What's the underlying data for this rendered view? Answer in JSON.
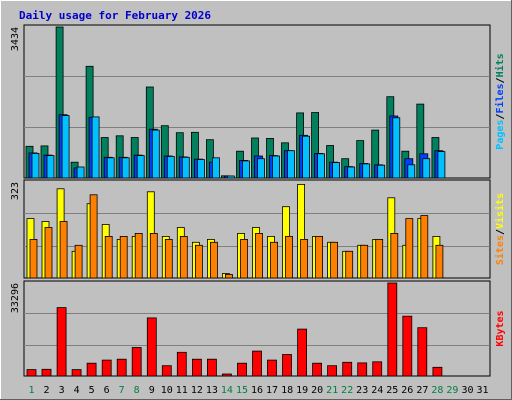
{
  "title": "Daily usage for February 2026",
  "colors": {
    "frame_bg": "#C0C0C0",
    "plot_bg": "#C0C0C0",
    "grid": "#808080",
    "title_text": "#0000CC",
    "hits": "#00805C",
    "files": "#0040FF",
    "pages": "#00C0FF",
    "visits": "#FFFF00",
    "sites": "#FF8000",
    "kbytes": "#FF0000",
    "weekday_label": "#000000",
    "weekend_label": "#007F40"
  },
  "chart_data": [
    {
      "type": "bar",
      "name": "hits-files-pages",
      "ymax_label": "3434",
      "ylim": [
        0,
        3434
      ],
      "side_label_parts": [
        "Pages",
        "Files",
        "Hits"
      ],
      "categories": [
        "1",
        "2",
        "3",
        "4",
        "5",
        "6",
        "7",
        "8",
        "9",
        "10",
        "11",
        "12",
        "13",
        "14",
        "15",
        "16",
        "17",
        "18",
        "19",
        "20",
        "21",
        "22",
        "23",
        "24",
        "25",
        "26",
        "27",
        "28",
        "29",
        "30",
        "31"
      ],
      "series": [
        {
          "name": "Hits",
          "values": [
            720,
            730,
            3434,
            360,
            2540,
            920,
            960,
            920,
            2070,
            1190,
            1030,
            1040,
            870,
            50,
            610,
            910,
            900,
            800,
            1480,
            1490,
            740,
            440,
            850,
            1090,
            1850,
            610,
            1680,
            920,
            0,
            0,
            0
          ]
        },
        {
          "name": "Files",
          "values": [
            570,
            520,
            1440,
            230,
            1380,
            470,
            470,
            520,
            1110,
            500,
            480,
            430,
            360,
            30,
            400,
            500,
            510,
            620,
            970,
            560,
            360,
            260,
            330,
            300,
            1410,
            440,
            550,
            620,
            0,
            0,
            0
          ]
        },
        {
          "name": "Pages",
          "values": [
            560,
            510,
            1420,
            250,
            1390,
            460,
            460,
            510,
            1090,
            490,
            470,
            420,
            460,
            30,
            390,
            440,
            500,
            620,
            950,
            550,
            350,
            250,
            320,
            290,
            1370,
            300,
            440,
            600,
            0,
            0,
            0
          ]
        }
      ]
    },
    {
      "type": "bar",
      "name": "visits-sites",
      "ymax_label": "323",
      "ylim": [
        0,
        323
      ],
      "side_label_parts": [
        "Sites",
        "Visits"
      ],
      "categories": [
        "1",
        "2",
        "3",
        "4",
        "5",
        "6",
        "7",
        "8",
        "9",
        "10",
        "11",
        "12",
        "13",
        "14",
        "15",
        "16",
        "17",
        "18",
        "19",
        "20",
        "21",
        "22",
        "23",
        "24",
        "25",
        "26",
        "27",
        "28",
        "29",
        "30",
        "31"
      ],
      "series": [
        {
          "name": "Visits",
          "values": [
            200,
            190,
            300,
            90,
            250,
            180,
            130,
            140,
            290,
            140,
            170,
            120,
            130,
            15,
            150,
            170,
            140,
            240,
            315,
            140,
            120,
            90,
            110,
            130,
            270,
            110,
            200,
            140,
            0,
            0,
            0
          ]
        },
        {
          "name": "Sites",
          "values": [
            130,
            170,
            190,
            110,
            280,
            140,
            140,
            150,
            150,
            130,
            140,
            110,
            120,
            12,
            130,
            150,
            120,
            140,
            130,
            140,
            120,
            90,
            110,
            130,
            150,
            200,
            210,
            110,
            0,
            0,
            0
          ]
        }
      ]
    },
    {
      "type": "bar",
      "name": "kbytes",
      "ymax_label": "33296",
      "ylim": [
        0,
        33296
      ],
      "side_label_parts": [
        "KBytes"
      ],
      "categories": [
        "1",
        "2",
        "3",
        "4",
        "5",
        "6",
        "7",
        "8",
        "9",
        "10",
        "11",
        "12",
        "13",
        "14",
        "15",
        "16",
        "17",
        "18",
        "19",
        "20",
        "21",
        "22",
        "23",
        "24",
        "25",
        "26",
        "27",
        "28",
        "29",
        "30",
        "31"
      ],
      "series": [
        {
          "name": "KBytes",
          "values": [
            2300,
            2400,
            24500,
            2300,
            4600,
            5700,
            6000,
            10200,
            20800,
            3700,
            8500,
            6000,
            6000,
            700,
            4600,
            8900,
            5700,
            7700,
            16800,
            4600,
            3700,
            4900,
            4700,
            5100,
            33296,
            21400,
            17300,
            3100,
            0,
            0,
            0
          ]
        }
      ]
    }
  ],
  "weekend_days": [
    1,
    7,
    8,
    14,
    15,
    21,
    22,
    28,
    29
  ]
}
